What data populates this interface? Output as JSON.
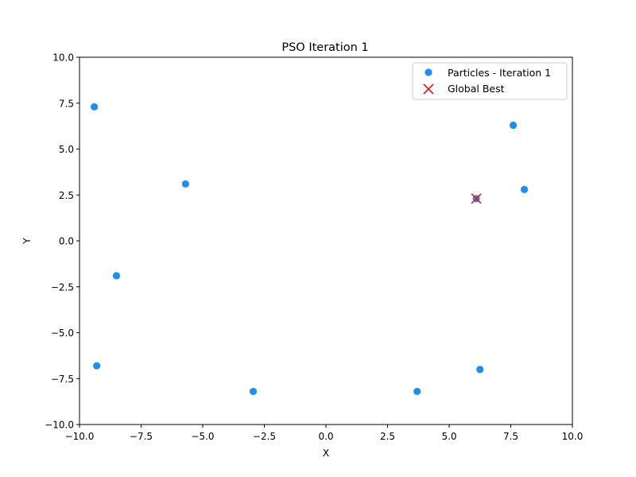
{
  "chart_data": {
    "type": "scatter",
    "title": "PSO Iteration 1",
    "xlabel": "X",
    "ylabel": "Y",
    "xlim": [
      -10,
      10
    ],
    "ylim": [
      -10,
      10
    ],
    "xticks": [
      -10.0,
      -7.5,
      -5.0,
      -2.5,
      0.0,
      2.5,
      5.0,
      7.5,
      10.0
    ],
    "yticks": [
      -10.0,
      -7.5,
      -5.0,
      -2.5,
      0.0,
      2.5,
      5.0,
      7.5,
      10.0
    ],
    "xtick_labels": [
      "−10.0",
      "−7.5",
      "−5.0",
      "−2.5",
      "0.0",
      "2.5",
      "5.0",
      "7.5",
      "10.0"
    ],
    "ytick_labels": [
      "−10.0",
      "−7.5",
      "−5.0",
      "−2.5",
      "0.0",
      "2.5",
      "5.0",
      "7.5",
      "10.0"
    ],
    "grid": false,
    "legend_position": "top-right",
    "series": [
      {
        "name": "Particles - Iteration 1",
        "marker": "circle",
        "color": "#1f8ef1",
        "points": [
          {
            "x": -9.4,
            "y": 7.3
          },
          {
            "x": -5.7,
            "y": 3.1
          },
          {
            "x": -8.5,
            "y": -1.9
          },
          {
            "x": -9.3,
            "y": -6.8
          },
          {
            "x": -2.95,
            "y": -8.2
          },
          {
            "x": 3.7,
            "y": -8.2
          },
          {
            "x": 6.25,
            "y": -7.0
          },
          {
            "x": 6.1,
            "y": 2.3
          },
          {
            "x": 7.6,
            "y": 6.3
          },
          {
            "x": 8.05,
            "y": 2.8
          }
        ]
      },
      {
        "name": "Global Best",
        "marker": "x",
        "color": "#e8161b",
        "points": [
          {
            "x": 6.1,
            "y": 2.3
          }
        ]
      }
    ]
  }
}
